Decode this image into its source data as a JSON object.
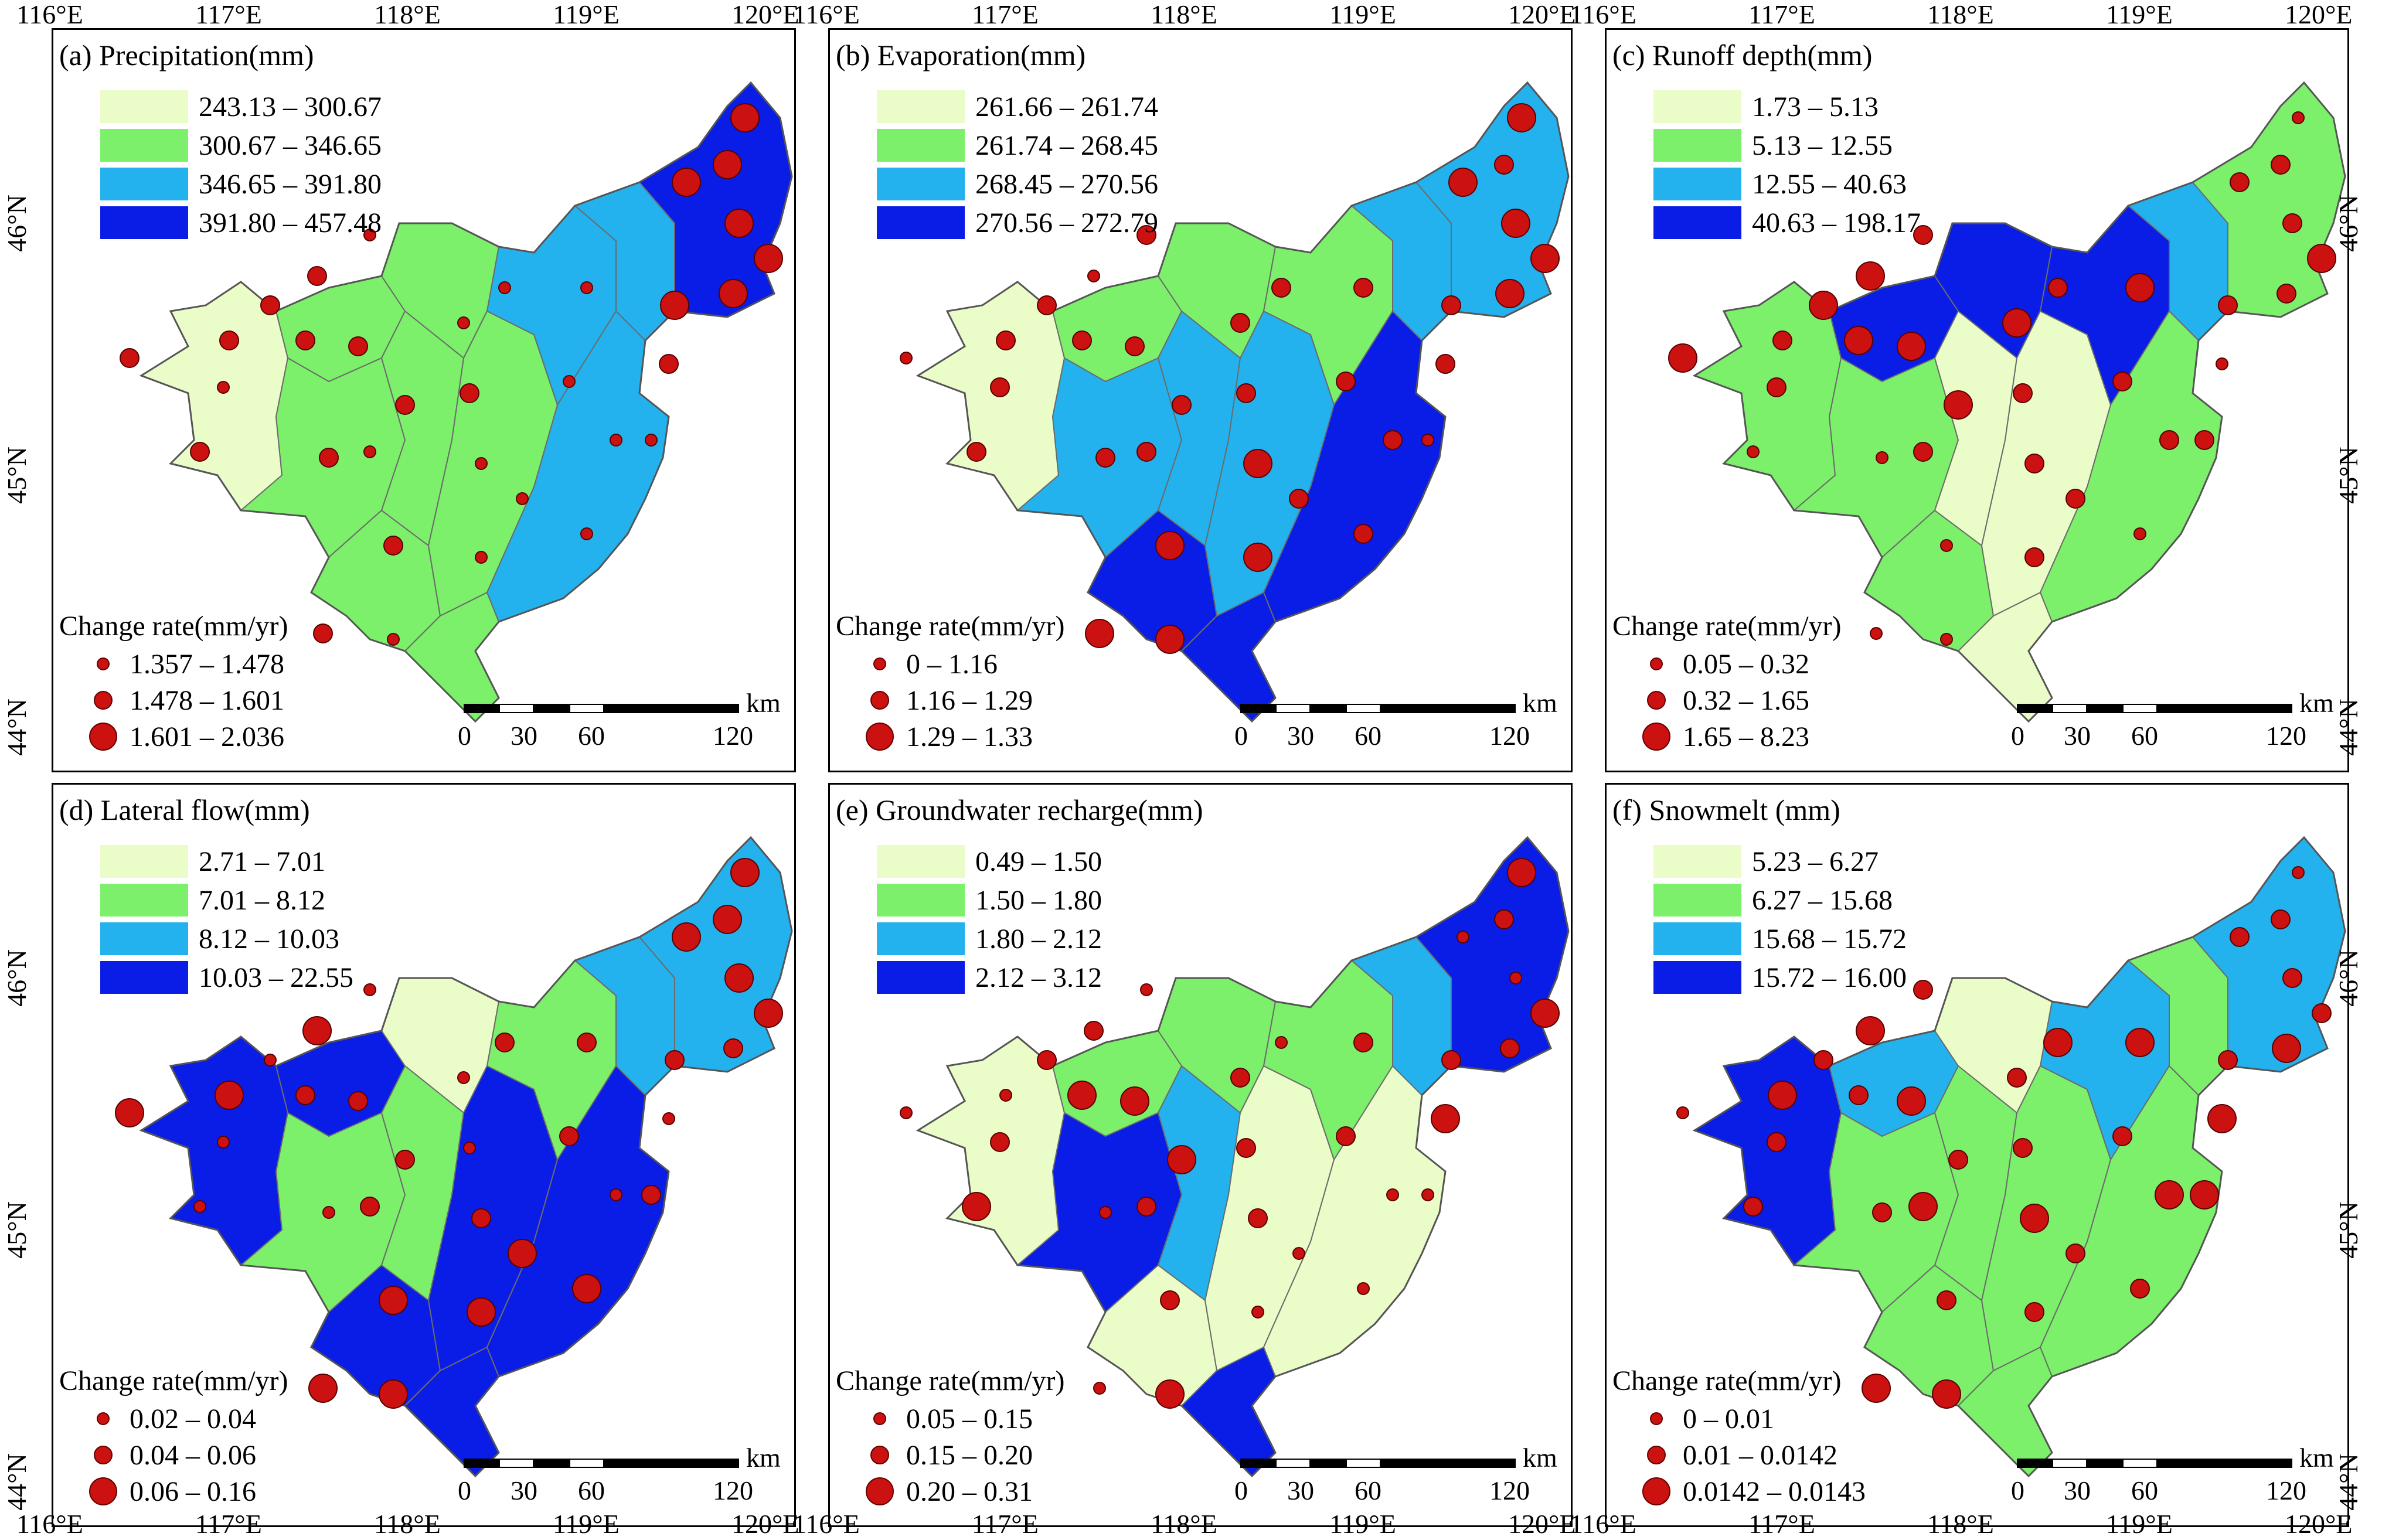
{
  "axes": {
    "lon_labels": [
      "116°E",
      "117°E",
      "118°E",
      "119°E",
      "120°E"
    ],
    "lat_labels": [
      "44°N",
      "45°N",
      "46°N"
    ]
  },
  "colors": {
    "class1": "#eafcc8",
    "class2": "#7cf06a",
    "class3": "#23b2ee",
    "class4": "#0a1de6",
    "dot": "#cc1111",
    "boundary": "#6b6b6b"
  },
  "scalebar": {
    "unit": "km",
    "ticks": [
      "0",
      "30",
      "60",
      "120"
    ]
  },
  "panels": [
    {
      "title": "(a) Precipitation(mm)",
      "classes": [
        "243.13 – 300.67",
        "300.67 – 346.65",
        "346.65 – 391.80",
        "391.80 – 457.48"
      ],
      "rate_title": "Change rate(mm/yr)",
      "rates": [
        "1.357 – 1.478",
        "1.478 – 1.601",
        "1.601 – 2.036"
      ]
    },
    {
      "title": "(b) Evaporation(mm)",
      "classes": [
        "261.66 – 261.74",
        "261.74 – 268.45",
        "268.45 – 270.56",
        "270.56 – 272.79"
      ],
      "rate_title": "Change rate(mm/yr)",
      "rates": [
        "0 – 1.16",
        "1.16 – 1.29",
        "1.29 – 1.33"
      ]
    },
    {
      "title": "(c) Runoff depth(mm)",
      "classes": [
        "1.73 – 5.13",
        "5.13 – 12.55",
        "12.55 – 40.63",
        "40.63 – 198.17"
      ],
      "rate_title": "Change rate(mm/yr)",
      "rates": [
        "0.05 – 0.32",
        "0.32 – 1.65",
        "1.65 – 8.23"
      ]
    },
    {
      "title": "(d) Lateral flow(mm)",
      "classes": [
        "2.71 – 7.01",
        "7.01 – 8.12",
        "8.12 – 10.03",
        "10.03 – 22.55"
      ],
      "rate_title": "Change rate(mm/yr)",
      "rates": [
        "0.02 – 0.04",
        "0.04 – 0.06",
        "0.06 – 0.16"
      ]
    },
    {
      "title": "(e) Groundwater recharge(mm)",
      "classes": [
        "0.49 – 1.50",
        "1.50 – 1.80",
        "1.80 – 2.12",
        "2.12 – 3.12"
      ],
      "rate_title": "Change rate(mm/yr)",
      "rates": [
        "0.05 – 0.15",
        "0.15 – 0.20",
        "0.20 – 0.31"
      ]
    },
    {
      "title": "(f) Snowmelt (mm)",
      "classes": [
        "5.23 – 6.27",
        "6.27 – 15.68",
        "15.68 – 15.72",
        "15.72 – 16.00"
      ],
      "rate_title": "Change rate(mm/yr)",
      "rates": [
        "0 – 0.01",
        "0.01 – 0.0142",
        "0.0142 – 0.0143"
      ]
    }
  ]
}
